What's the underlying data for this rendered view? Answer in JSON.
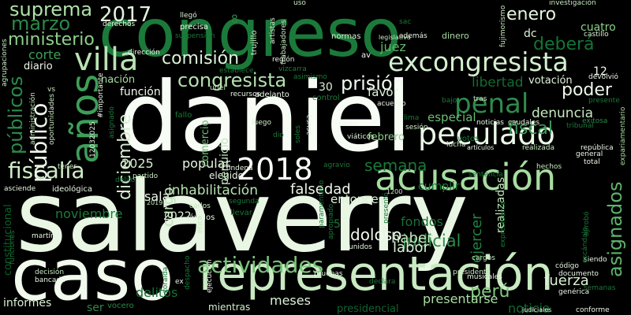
{
  "words": [
    {
      "text": "salaverry",
      "color": "#e8f6e3",
      "rot": false
    },
    {
      "text": "daniel",
      "color": "#f7fcf5",
      "rot": false
    },
    {
      "text": "congreso",
      "color": "#1b7a3a",
      "rot": false
    },
    {
      "text": "caso",
      "color": "#f2faee",
      "rot": false
    },
    {
      "text": "representación",
      "color": "#c9eac2",
      "rot": false
    },
    {
      "text": "excongresista",
      "color": "#d5efcf",
      "rot": false
    },
    {
      "text": "acusación",
      "color": "#a7dca1",
      "rot": false
    },
    {
      "text": "años",
      "color": "#3e9e58",
      "rot": true
    },
    {
      "text": "peculado",
      "color": "#eaf7e6",
      "rot": false
    },
    {
      "text": "2018",
      "color": "#f7fcf5",
      "rot": false
    },
    {
      "text": "villa",
      "color": "#b9e3b2",
      "rot": false
    },
    {
      "text": "actividades",
      "color": "#78c37a",
      "rot": false
    },
    {
      "text": "penal",
      "color": "#2e8b4b",
      "rot": false
    },
    {
      "text": "congresista",
      "color": "#b3e1ad",
      "rot": false
    },
    {
      "text": "fiscalía",
      "color": "#d0ecc9",
      "rot": false
    },
    {
      "text": "público",
      "color": "#eef8ea",
      "rot": true
    },
    {
      "text": "públicos",
      "color": "#2c8a49",
      "rot": true
    },
    {
      "text": "prisión",
      "color": "#f1faee",
      "rot": false
    },
    {
      "text": "2017",
      "color": "#e3f4de",
      "rot": false
    },
    {
      "text": "comisión",
      "color": "#dcf2d7",
      "rot": false
    },
    {
      "text": "suprema",
      "color": "#b0e0a9",
      "rot": false
    },
    {
      "text": "marzo",
      "color": "#2b8846",
      "rot": false
    },
    {
      "text": "ministerio",
      "color": "#8dcf89",
      "rot": false
    },
    {
      "text": "enero",
      "color": "#e6f5e1",
      "rot": false
    },
    {
      "text": "deberá",
      "color": "#147434",
      "rot": false
    },
    {
      "text": "poder",
      "color": "#eef8ea",
      "rot": false
    },
    {
      "text": "fiscal",
      "color": "#3a9a56",
      "rot": false
    },
    {
      "text": "asignados",
      "color": "#5db46a",
      "rot": true
    },
    {
      "text": "diciembre",
      "color": "#d7efd1",
      "rot": true
    },
    {
      "text": "semana",
      "color": "#1a7838",
      "rot": false
    },
    {
      "text": "inhabilitación",
      "color": "#b7e2b0",
      "rot": false
    },
    {
      "text": "falsedad",
      "color": "#eaf7e6",
      "rot": false
    },
    {
      "text": "judicial",
      "color": "#2d8a4a",
      "rot": false
    },
    {
      "text": "perú",
      "color": "#80c77d",
      "rot": false
    },
    {
      "text": "popular",
      "color": "#e6f5e1",
      "rot": false
    },
    {
      "text": "2025",
      "color": "#d3eecc",
      "rot": false
    },
    {
      "text": "sala",
      "color": "#eef8ea",
      "rot": false
    },
    {
      "text": "cargo",
      "color": "#bfe5b8",
      "rot": true
    },
    {
      "text": "noviembre",
      "color": "#1d7b3b",
      "rot": false
    },
    {
      "text": "doloso",
      "color": "#f1faee",
      "rot": false
    },
    {
      "text": "fondos",
      "color": "#186f35",
      "rot": false
    },
    {
      "text": "haber",
      "color": "#c7e9c0",
      "rot": false
    },
    {
      "text": "labor",
      "color": "#d9f0d3",
      "rot": false
    },
    {
      "text": "fuerza",
      "color": "#dcf2d7",
      "rot": false
    },
    {
      "text": "libertad",
      "color": "#126b2f",
      "rot": false
    },
    {
      "text": "votación",
      "color": "#e3f4de",
      "rot": false
    },
    {
      "text": "denuncia",
      "color": "#c7e9c0",
      "rot": false
    },
    {
      "text": "especial",
      "color": "#6cbc72",
      "rot": false
    },
    {
      "text": "favor",
      "color": "#e3f4de",
      "rot": false
    },
    {
      "text": "febrero",
      "color": "#8bcf88",
      "rot": false
    },
    {
      "text": "entonces",
      "color": "#dcf2d7",
      "rot": false
    },
    {
      "text": "cumplir",
      "color": "#1a7638",
      "rot": false
    },
    {
      "text": "función",
      "color": "#f1faee",
      "rot": false
    },
    {
      "text": "nación",
      "color": "#a8dca2",
      "rot": false
    },
    {
      "text": "corte",
      "color": "#3e9e58",
      "rot": false
    },
    {
      "text": "diario",
      "color": "#eef8ea",
      "rot": false
    },
    {
      "text": "juez",
      "color": "#5fb56b",
      "rot": false
    },
    {
      "text": "cuatro",
      "color": "#8ccf88",
      "rot": false
    },
    {
      "text": "dc",
      "color": "#dcf2d7",
      "rot": false
    },
    {
      "text": "ejercer",
      "color": "#238241",
      "rot": true
    },
    {
      "text": "realizadas",
      "color": "#c2e6bb",
      "rot": true
    },
    {
      "text": "presentarse",
      "color": "#aadda3",
      "rot": false
    },
    {
      "text": "meses",
      "color": "#dcf2d7",
      "rot": false
    },
    {
      "text": "delitos",
      "color": "#186f35",
      "rot": false
    },
    {
      "text": "informes",
      "color": "#d9f0d3",
      "rot": false
    },
    {
      "text": "noticia",
      "color": "#0f6a2e",
      "rot": false
    },
    {
      "text": "constitucional",
      "color": "#0b5f28",
      "rot": true
    },
    {
      "text": "ser",
      "color": "#2c8a49",
      "rot": false
    },
    {
      "text": "2022",
      "color": "#e3f4de",
      "rot": false
    },
    {
      "text": "elegido",
      "color": "#eaf7e6",
      "rot": false
    },
    {
      "text": "comercio",
      "color": "#6cbc72",
      "rot": true
    },
    {
      "text": "perjuicio",
      "color": "#c2e6bb",
      "rot": true
    },
    {
      "text": "presidencial",
      "color": "#0e6530",
      "rot": false
    },
    {
      "text": "mientras",
      "color": "#d3eecc",
      "rot": false
    },
    {
      "text": "vocero",
      "color": "#2b8846",
      "rot": false
    },
    {
      "text": "12",
      "color": "#eef8ea",
      "rot": false
    },
    {
      "text": "30",
      "color": "#d9f0d3",
      "rot": false
    },
    {
      "text": "8",
      "color": "#2b8846",
      "rot": false
    },
    {
      "text": "5",
      "color": "#1a7838",
      "rot": false
    },
    {
      "text": "llegó",
      "color": "#dcf2d7",
      "rot": false
    },
    {
      "text": "precisa",
      "color": "#eaf7e6",
      "rot": false
    },
    {
      "text": "trujillo",
      "color": "#c7e9c0",
      "rot": true
    },
    {
      "text": "artistas",
      "color": "#d9f0d3",
      "rot": true
    },
    {
      "text": "trabajadores",
      "color": "#c7e9c0",
      "rot": true
    },
    {
      "text": "investigación",
      "color": "#c7e9c0",
      "rot": false
    },
    {
      "text": "fujimorismo",
      "color": "#c7e9c0",
      "rot": true
    },
    {
      "text": "castillo",
      "color": "#dcf2d7",
      "rot": false
    },
    {
      "text": "normas",
      "color": "#dcf2d7",
      "rot": false
    },
    {
      "text": "dinero",
      "color": "#a7dca1",
      "rot": false
    },
    {
      "text": "derechos",
      "color": "#eaf7e6",
      "rot": false
    },
    {
      "text": "dirección",
      "color": "#eaf7e6",
      "rot": false
    },
    {
      "text": "región",
      "color": "#eaf7e6",
      "rot": false
    },
    {
      "text": "vizcarra",
      "color": "#1f7d3d",
      "rot": false
    },
    {
      "text": "av",
      "color": "#eef8ea",
      "rot": false
    },
    {
      "text": "asimismo",
      "color": "#1a7838",
      "rot": false
    },
    {
      "text": "adelanto",
      "color": "#eef8ea",
      "rot": false
    },
    {
      "text": "control",
      "color": "#1f7d3d",
      "rot": false
    },
    {
      "text": "luego",
      "color": "#d3eecc",
      "rot": false
    },
    {
      "text": "soles",
      "color": "#1a7838",
      "rot": true
    },
    {
      "text": "acusa",
      "color": "#e3f4de",
      "rot": true
    },
    {
      "text": "acuerdo",
      "color": "#eef8ea",
      "rot": false
    },
    {
      "text": "terán",
      "color": "#eef8ea",
      "rot": false
    },
    {
      "text": "sesión",
      "color": "#d3eecc",
      "rot": false
    },
    {
      "text": "noticias",
      "color": "#eaf7e6",
      "rot": false
    },
    {
      "text": "caudales",
      "color": "#eaf7e6",
      "rot": false
    },
    {
      "text": "votos",
      "color": "#1a7838",
      "rot": false
    },
    {
      "text": "lucha",
      "color": "#d3eecc",
      "rot": false
    },
    {
      "text": "república",
      "color": "#eef8ea",
      "rot": false
    },
    {
      "text": "general",
      "color": "#eef8ea",
      "rot": false
    },
    {
      "text": "total",
      "color": "#eef8ea",
      "rot": false
    },
    {
      "text": "realizada",
      "color": "#c7e9c0",
      "rot": false
    },
    {
      "text": "hechos",
      "color": "#c7e9c0",
      "rot": false
    },
    {
      "text": "exitosa",
      "color": "#2b8846",
      "rot": false
    },
    {
      "text": "devolvió",
      "color": "#eef8ea",
      "rot": false
    },
    {
      "text": "presente",
      "color": "#1a7838",
      "rot": false
    },
    {
      "text": "expariamentario",
      "color": "#a7dca1",
      "rot": true
    },
    {
      "text": "carlos",
      "color": "#c7e9c0",
      "rot": false
    },
    {
      "text": "llevar",
      "color": "#1a7838",
      "rot": false
    },
    {
      "text": "ávalos",
      "color": "#eaf7e6",
      "rot": false
    },
    {
      "text": "martín",
      "color": "#eaf7e6",
      "rot": false
    },
    {
      "text": "decisión",
      "color": "#c7e9c0",
      "rot": false
    },
    {
      "text": "bancada",
      "color": "#eaf7e6",
      "rot": false
    },
    {
      "text": "ex",
      "color": "#eef8ea",
      "rot": false
    },
    {
      "text": "pruebas",
      "color": "#eaf7e6",
      "rot": false
    },
    {
      "text": "unidos",
      "color": "#eaf7e6",
      "rot": false
    },
    {
      "text": "cargos",
      "color": "#c7e9c0",
      "rot": false
    },
    {
      "text": "presidente",
      "color": "#c7e9c0",
      "rot": false
    },
    {
      "text": "musicales",
      "color": "#eaf7e6",
      "rot": false
    },
    {
      "text": "código",
      "color": "#eaf7e6",
      "rot": false
    },
    {
      "text": "documento",
      "color": "#eaf7e6",
      "rot": false
    },
    {
      "text": "siendo",
      "color": "#eaf7e6",
      "rot": false
    },
    {
      "text": "genérica",
      "color": "#eaf7e6",
      "rot": false
    },
    {
      "text": "conforme",
      "color": "#eaf7e6",
      "rot": false
    },
    {
      "text": "asciende",
      "color": "#eaf7e6",
      "rot": false
    },
    {
      "text": "ideológica",
      "color": "#eaf7e6",
      "rot": false
    },
    {
      "text": "delito",
      "color": "#1a7838",
      "rot": false
    },
    {
      "text": "partido",
      "color": "#c7e9c0",
      "rot": false
    },
    {
      "text": "tener",
      "color": "#c7e9c0",
      "rot": false
    },
    {
      "text": "paramentario",
      "color": "#1a7838",
      "rot": true
    },
    {
      "text": "apropiado",
      "color": "#1a7838",
      "rot": true
    },
    {
      "text": "despacho",
      "color": "#1a7838",
      "rot": true
    },
    {
      "text": "agrupaciones",
      "color": "#c7e9c0",
      "rot": true
    },
    {
      "text": "administración",
      "color": "#c7e9c0",
      "rot": true
    },
    {
      "text": "oportunidades",
      "color": "#c7e9c0",
      "rot": true
    },
    {
      "text": "12032025",
      "color": "#eaf7e6",
      "rot": true
    },
    {
      "text": "#importante",
      "color": "#eaf7e6",
      "rot": true
    },
    {
      "text": "asignado",
      "color": "#1a7838",
      "rot": true
    },
    {
      "text": "fallo",
      "color": "#1a7838",
      "rot": false
    },
    {
      "text": "recursos",
      "color": "#eaf7e6",
      "rot": false
    },
    {
      "text": "uriel",
      "color": "#c7e9c0",
      "rot": false
    },
    {
      "text": "dio",
      "color": "#1a7838",
      "rot": false
    },
    {
      "text": "condena",
      "color": "#eaf7e6",
      "rot": false
    },
    {
      "text": "agravio",
      "color": "#1a7838",
      "rot": false
    },
    {
      "text": "zoraida",
      "color": "#1a7838",
      "rot": true
    },
    {
      "text": "ética",
      "color": "#c7e9c0",
      "rot": true
    },
    {
      "text": "segunda",
      "color": "#1a7838",
      "rot": false
    },
    {
      "text": "presentó",
      "color": "#1a7838",
      "rot": true
    },
    {
      "text": "expresidente",
      "color": "#1a7838",
      "rot": true
    },
    {
      "text": "ejecución",
      "color": "#eaf7e6",
      "rot": true
    },
    {
      "text": "viáticos",
      "color": "#eaf7e6",
      "rot": false
    },
    {
      "text": "además",
      "color": "#eaf7e6",
      "rot": false
    },
    {
      "text": "bajo",
      "color": "#1a7838",
      "rot": false
    },
    {
      "text": "lima",
      "color": "#1a7838",
      "rot": false
    },
    {
      "text": "tras",
      "color": "#c7e9c0",
      "rot": false
    },
    {
      "text": "sac",
      "color": "#1a7838",
      "rot": false
    },
    {
      "text": "uso",
      "color": "#c7e9c0",
      "rot": false
    },
    {
      "text": "suspensión",
      "color": "#1a7838",
      "rot": false
    },
    {
      "text": "establece",
      "color": "#1a7838",
      "rot": false
    },
    {
      "text": "vs",
      "color": "#c7e9c0",
      "rot": false
    },
    {
      "text": "tribunal",
      "color": "#1a7838",
      "rot": false
    },
    {
      "text": "declara",
      "color": "#1a7838",
      "rot": false
    },
    {
      "text": "escándalo",
      "color": "#1a7838",
      "rot": true
    },
    {
      "text": "legislativa",
      "color": "#c7e9c0",
      "rot": false
    },
    {
      "text": "artículos",
      "color": "#eaf7e6",
      "rot": false
    },
    {
      "text": "semanas",
      "color": "#1a7838",
      "rot": false
    },
    {
      "text": "sentencia",
      "color": "#1a7838",
      "rot": false
    },
    {
      "text": "funciones",
      "color": "#1a7838",
      "rot": true
    },
    {
      "text": "judiciales",
      "color": "#eaf7e6",
      "rot": false
    },
    {
      "text": "aprobó",
      "color": "#1a7838",
      "rot": true
    },
    {
      "text": "1200",
      "color": "#c7e9c0",
      "rot": false
    },
    {
      "text": "2019",
      "color": "#c7e9c0",
      "rot": false
    }
  ]
}
